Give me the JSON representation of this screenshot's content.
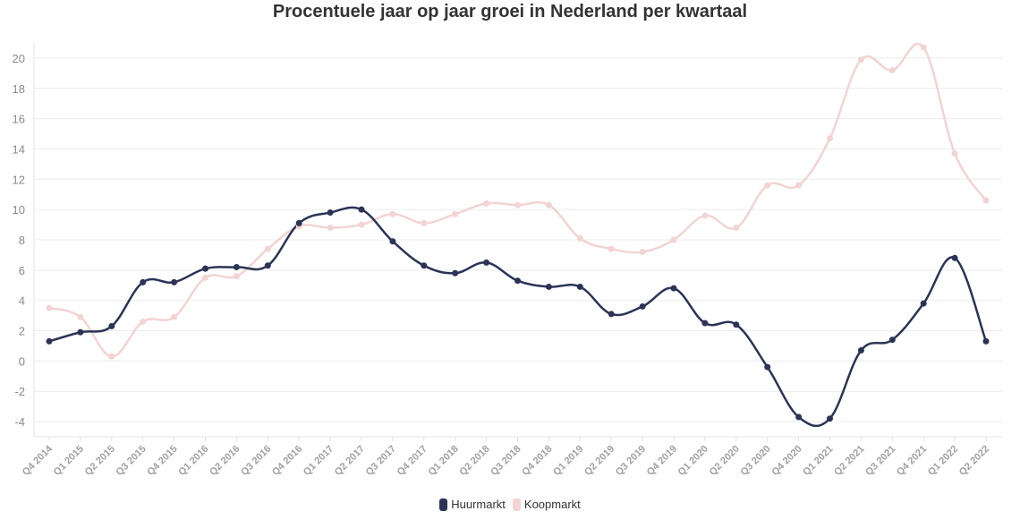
{
  "chart_data": {
    "type": "line",
    "title": "Procentuele jaar op jaar groei in Nederland per kwartaal",
    "xlabel": "",
    "ylabel": "",
    "ylim": [
      -5,
      21
    ],
    "yticks": [
      -4,
      -2,
      0,
      2,
      4,
      6,
      8,
      10,
      12,
      14,
      16,
      18,
      20
    ],
    "categories": [
      "Q4 2014",
      "Q1 2015",
      "Q2 2015",
      "Q3 2015",
      "Q4 2015",
      "Q1 2016",
      "Q2 2016",
      "Q3 2016",
      "Q4 2016",
      "Q1 2017",
      "Q2 2017",
      "Q3 2017",
      "Q4 2017",
      "Q1 2018",
      "Q2 2018",
      "Q3 2018",
      "Q4 2018",
      "Q1 2019",
      "Q2 2019",
      "Q3 2019",
      "Q4 2019",
      "Q1 2020",
      "Q2 2020",
      "Q3 2020",
      "Q4 2020",
      "Q1 2021",
      "Q2 2021",
      "Q3 2021",
      "Q4 2021",
      "Q1 2022",
      "Q2 2022"
    ],
    "series": [
      {
        "name": "Huurmarkt",
        "color": "#2b3456",
        "values": [
          1.3,
          1.9,
          2.3,
          5.2,
          5.2,
          6.1,
          6.2,
          6.3,
          9.1,
          9.8,
          10.0,
          7.9,
          6.3,
          5.8,
          6.5,
          5.3,
          4.9,
          4.9,
          3.1,
          3.6,
          4.8,
          2.5,
          2.4,
          -0.4,
          -3.7,
          -3.8,
          0.7,
          1.4,
          3.8,
          6.8,
          1.3
        ]
      },
      {
        "name": "Koopmarkt",
        "color": "#f2d4d3",
        "values": [
          3.5,
          2.9,
          0.3,
          2.6,
          2.9,
          5.5,
          5.6,
          7.4,
          8.9,
          8.8,
          9.0,
          9.7,
          9.1,
          9.7,
          10.4,
          10.3,
          10.3,
          8.1,
          7.4,
          7.2,
          8.0,
          9.6,
          8.8,
          11.6,
          11.6,
          14.7,
          19.9,
          19.2,
          20.7,
          13.7,
          10.6
        ]
      }
    ],
    "legend": "bottom-center",
    "grid": true
  }
}
